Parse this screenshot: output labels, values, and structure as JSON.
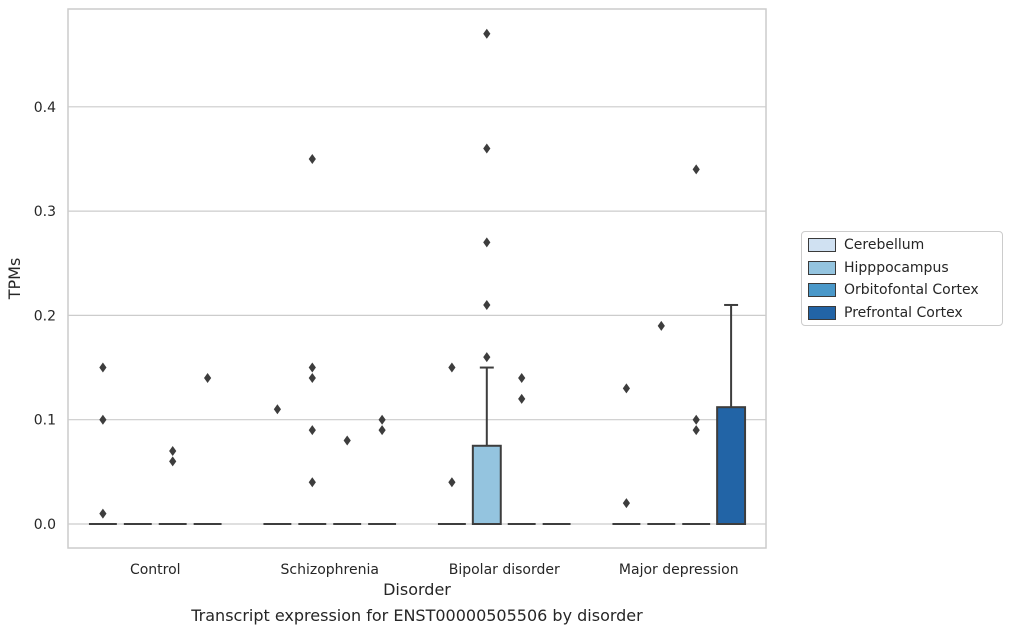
{
  "chart_data": {
    "type": "box",
    "xlabel": "Disorder",
    "ylabel": "TPMs",
    "caption": "Transcript expression for ENST00000505506 by disorder",
    "categories": [
      "Control",
      "Schizophrenia",
      "Bipolar disorder",
      "Major depression"
    ],
    "ylim": [
      -0.023,
      0.495
    ],
    "yticks": [
      "0.0",
      "0.1",
      "0.2",
      "0.3",
      "0.4"
    ],
    "grid": "horizontal",
    "legend_position": "right",
    "series": [
      {
        "name": "Cerebellum",
        "color": "#d0e1f2",
        "boxes": [
          {
            "q1": 0,
            "median": 0,
            "q3": 0,
            "whisker_low": 0,
            "whisker_high": 0,
            "outliers": [
              0.15,
              0.1,
              0.01
            ]
          },
          {
            "q1": 0,
            "median": 0,
            "q3": 0,
            "whisker_low": 0,
            "whisker_high": 0,
            "outliers": [
              0.11
            ]
          },
          {
            "q1": 0,
            "median": 0,
            "q3": 0,
            "whisker_low": 0,
            "whisker_high": 0,
            "outliers": [
              0.15,
              0.04
            ]
          },
          {
            "q1": 0,
            "median": 0,
            "q3": 0,
            "whisker_low": 0,
            "whisker_high": 0,
            "outliers": [
              0.13,
              0.02
            ]
          }
        ]
      },
      {
        "name": "Hipppocampus",
        "color": "#94c4df",
        "boxes": [
          {
            "q1": 0,
            "median": 0,
            "q3": 0,
            "whisker_low": 0,
            "whisker_high": 0,
            "outliers": []
          },
          {
            "q1": 0,
            "median": 0,
            "q3": 0,
            "whisker_low": 0,
            "whisker_high": 0,
            "outliers": [
              0.35,
              0.15,
              0.14,
              0.09,
              0.04
            ]
          },
          {
            "q1": 0,
            "median": 0,
            "q3": 0.075,
            "whisker_low": 0,
            "whisker_high": 0.15,
            "outliers": [
              0.47,
              0.36,
              0.27,
              0.21,
              0.16
            ]
          },
          {
            "q1": 0,
            "median": 0,
            "q3": 0,
            "whisker_low": 0,
            "whisker_high": 0,
            "outliers": [
              0.19
            ]
          }
        ]
      },
      {
        "name": "Orbitofontal Cortex",
        "color": "#4a98c9",
        "boxes": [
          {
            "q1": 0,
            "median": 0,
            "q3": 0,
            "whisker_low": 0,
            "whisker_high": 0,
            "outliers": [
              0.07,
              0.06
            ]
          },
          {
            "q1": 0,
            "median": 0,
            "q3": 0,
            "whisker_low": 0,
            "whisker_high": 0,
            "outliers": [
              0.08
            ]
          },
          {
            "q1": 0,
            "median": 0,
            "q3": 0,
            "whisker_low": 0,
            "whisker_high": 0,
            "outliers": [
              0.14,
              0.12
            ]
          },
          {
            "q1": 0,
            "median": 0,
            "q3": 0,
            "whisker_low": 0,
            "whisker_high": 0,
            "outliers": [
              0.34,
              0.1,
              0.09
            ]
          }
        ]
      },
      {
        "name": "Prefrontal Cortex",
        "color": "#2264a6",
        "boxes": [
          {
            "q1": 0,
            "median": 0,
            "q3": 0,
            "whisker_low": 0,
            "whisker_high": 0,
            "outliers": [
              0.14
            ]
          },
          {
            "q1": 0,
            "median": 0,
            "q3": 0,
            "whisker_low": 0,
            "whisker_high": 0,
            "outliers": [
              0.1,
              0.09
            ]
          },
          {
            "q1": 0,
            "median": 0,
            "q3": 0,
            "whisker_low": 0,
            "whisker_high": 0,
            "outliers": []
          },
          {
            "q1": 0,
            "median": 0,
            "q3": 0.112,
            "whisker_low": 0,
            "whisker_high": 0.21,
            "outliers": []
          }
        ]
      }
    ]
  }
}
